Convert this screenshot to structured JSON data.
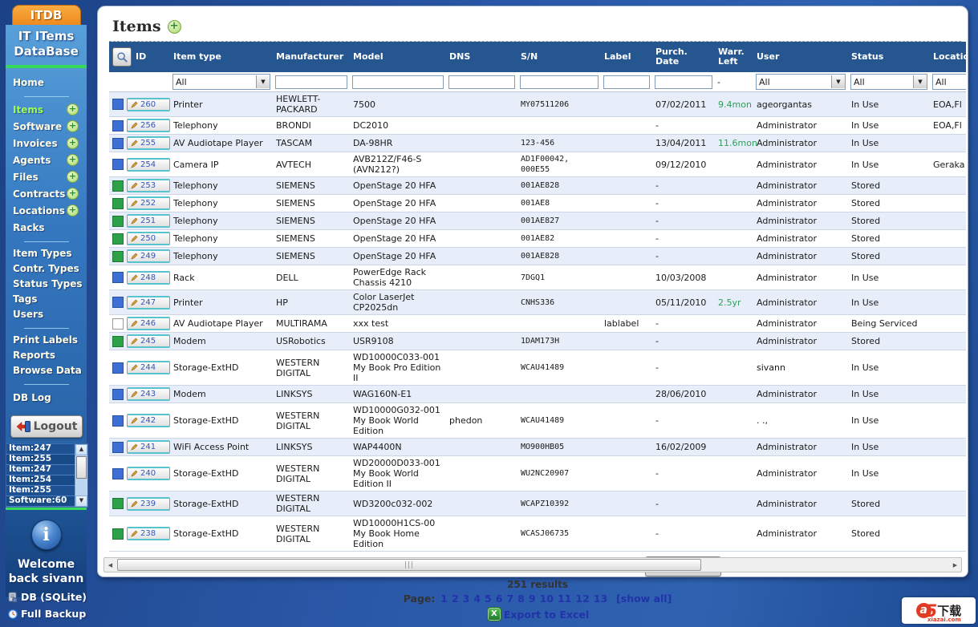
{
  "app": {
    "logo": "ITDB",
    "title_line1": "IT ITems",
    "title_line2": "DataBase"
  },
  "sidebar": {
    "home": "Home",
    "nav_plus": [
      {
        "label": "Items",
        "active": true
      },
      {
        "label": "Software",
        "active": false
      },
      {
        "label": "Invoices",
        "active": false
      },
      {
        "label": "Agents",
        "active": false
      },
      {
        "label": "Files",
        "active": false
      },
      {
        "label": "Contracts",
        "active": false
      },
      {
        "label": "Locations",
        "active": false
      }
    ],
    "racks": "Racks",
    "type_links": [
      "Item Types",
      "Contr. Types",
      "Status Types",
      "Tags",
      "Users"
    ],
    "tool_links": [
      "Print Labels",
      "Reports",
      "Browse Data"
    ],
    "db_log": "DB Log",
    "logout": "Logout",
    "recent": [
      "Item:247",
      "Item:255",
      "Item:247",
      "Item:254",
      "Item:255",
      "Software:60"
    ],
    "welcome_line1": "Welcome",
    "welcome_line2": "back sivann",
    "db_link": "DB (SQLite)",
    "backup_link": "Full Backup"
  },
  "main": {
    "title": "Items",
    "search_button": "Search",
    "results": "251 results",
    "page_label": "Page:",
    "pages": [
      "1",
      "2",
      "3",
      "4",
      "5",
      "6",
      "7",
      "8",
      "9",
      "10",
      "11",
      "12",
      "13"
    ],
    "show_all": "[show all]",
    "export": "Export to Excel",
    "filters": {
      "item_type": "All",
      "warr_left": "-",
      "user": "All",
      "status": "All",
      "location": "All"
    }
  },
  "table": {
    "columns": [
      "ID",
      "Item type",
      "Manufacturer",
      "Model",
      "DNS",
      "S/N",
      "Label",
      "Purch. Date",
      "Warr. Left",
      "User",
      "Status",
      "Location"
    ],
    "rows": [
      {
        "id": "260",
        "status_color": "blue",
        "item_type": "Printer",
        "manufacturer": "HEWLETT-PACKARD",
        "model": "7500",
        "dns": "",
        "sn": "MY07511206",
        "label": "",
        "purch_date": "07/02/2011",
        "warr_left": "9.4mon",
        "user": "ageorgantas",
        "status": "In Use",
        "location": "EOA,Fl"
      },
      {
        "id": "256",
        "status_color": "blue",
        "item_type": "Telephony",
        "manufacturer": "BRONDI",
        "model": "DC2010",
        "dns": "",
        "sn": "",
        "label": "",
        "purch_date": "-",
        "warr_left": "",
        "user": "Administrator",
        "status": "In Use",
        "location": "EOA,Fl"
      },
      {
        "id": "255",
        "status_color": "blue",
        "item_type": "AV Audiotape Player",
        "manufacturer": "TASCAM",
        "model": "DA-98HR",
        "dns": "",
        "sn": "123-456",
        "label": "",
        "purch_date": "13/04/2011",
        "warr_left": "11.6mon",
        "user": "Administrator",
        "status": "In Use",
        "location": ""
      },
      {
        "id": "254",
        "status_color": "blue",
        "item_type": "Camera IP",
        "manufacturer": "AVTECH",
        "model": "AVB212Z/F46-S (AVN212?)",
        "dns": "",
        "sn": "AD1F00042, 000E55",
        "label": "",
        "purch_date": "09/12/2010",
        "warr_left": "",
        "user": "Administrator",
        "status": "In Use",
        "location": "Geraka"
      },
      {
        "id": "253",
        "status_color": "green",
        "item_type": "Telephony",
        "manufacturer": "SIEMENS",
        "model": "OpenStage 20 HFA",
        "dns": "",
        "sn": "001AE828",
        "label": "",
        "purch_date": "-",
        "warr_left": "",
        "user": "Administrator",
        "status": "Stored",
        "location": ""
      },
      {
        "id": "252",
        "status_color": "green",
        "item_type": "Telephony",
        "manufacturer": "SIEMENS",
        "model": "OpenStage 20 HFA",
        "dns": "",
        "sn": "001AE8",
        "label": "",
        "purch_date": "-",
        "warr_left": "",
        "user": "Administrator",
        "status": "Stored",
        "location": ""
      },
      {
        "id": "251",
        "status_color": "green",
        "item_type": "Telephony",
        "manufacturer": "SIEMENS",
        "model": "OpenStage 20 HFA",
        "dns": "",
        "sn": "001AE827",
        "label": "",
        "purch_date": "-",
        "warr_left": "",
        "user": "Administrator",
        "status": "Stored",
        "location": ""
      },
      {
        "id": "250",
        "status_color": "green",
        "item_type": "Telephony",
        "manufacturer": "SIEMENS",
        "model": "OpenStage 20 HFA",
        "dns": "",
        "sn": "001AE82",
        "label": "",
        "purch_date": "-",
        "warr_left": "",
        "user": "Administrator",
        "status": "Stored",
        "location": ""
      },
      {
        "id": "249",
        "status_color": "green",
        "item_type": "Telephony",
        "manufacturer": "SIEMENS",
        "model": "OpenStage 20 HFA",
        "dns": "",
        "sn": "001AE828",
        "label": "",
        "purch_date": "-",
        "warr_left": "",
        "user": "Administrator",
        "status": "Stored",
        "location": ""
      },
      {
        "id": "248",
        "status_color": "blue",
        "item_type": "Rack",
        "manufacturer": "DELL",
        "model": "PowerEdge Rack Chassis 4210",
        "dns": "",
        "sn": "7DGQ1",
        "label": "",
        "purch_date": "10/03/2008",
        "warr_left": "",
        "user": "Administrator",
        "status": "In Use",
        "location": ""
      },
      {
        "id": "247",
        "status_color": "blue",
        "item_type": "Printer",
        "manufacturer": "HP",
        "model": "Color LaserJet CP2025dn",
        "dns": "",
        "sn": "CNHS336",
        "label": "",
        "purch_date": "05/11/2010",
        "warr_left": "2.5yr",
        "user": "Administrator",
        "status": "In Use",
        "location": ""
      },
      {
        "id": "246",
        "status_color": "white",
        "item_type": "AV Audiotape Player",
        "manufacturer": "MULTIRAMA",
        "model": "xxx test",
        "dns": "",
        "sn": "",
        "label": "lablabel",
        "purch_date": "-",
        "warr_left": "",
        "user": "Administrator",
        "status": "Being Serviced",
        "location": ""
      },
      {
        "id": "245",
        "status_color": "green",
        "item_type": "Modem",
        "manufacturer": "USRobotics",
        "model": "USR9108",
        "dns": "",
        "sn": "1DAM173H",
        "label": "",
        "purch_date": "-",
        "warr_left": "",
        "user": "Administrator",
        "status": "Stored",
        "location": ""
      },
      {
        "id": "244",
        "status_color": "blue",
        "item_type": "Storage-ExtHD",
        "manufacturer": "WESTERN DIGITAL",
        "model": "WD10000C033-001 My Book Pro Edition II",
        "dns": "",
        "sn": "WCAU41489",
        "label": "",
        "purch_date": "-",
        "warr_left": "",
        "user": "sivann",
        "status": "In Use",
        "location": ""
      },
      {
        "id": "243",
        "status_color": "blue",
        "item_type": "Modem",
        "manufacturer": "LINKSYS",
        "model": "WAG160N-E1",
        "dns": "",
        "sn": "",
        "label": "",
        "purch_date": "28/06/2010",
        "warr_left": "",
        "user": "Administrator",
        "status": "In Use",
        "location": ""
      },
      {
        "id": "242",
        "status_color": "blue",
        "item_type": "Storage-ExtHD",
        "manufacturer": "WESTERN DIGITAL",
        "model": "WD10000G032-001 My Book World Edition",
        "dns": "phedon",
        "sn": "WCAU41489",
        "label": "",
        "purch_date": "-",
        "warr_left": "",
        "user": ". .,",
        "status": "In Use",
        "location": ""
      },
      {
        "id": "241",
        "status_color": "blue",
        "item_type": "WiFi Access Point",
        "manufacturer": "LINKSYS",
        "model": "WAP4400N",
        "dns": "",
        "sn": "MO900HB05",
        "label": "",
        "purch_date": "16/02/2009",
        "warr_left": "",
        "user": "Administrator",
        "status": "In Use",
        "location": ""
      },
      {
        "id": "240",
        "status_color": "blue",
        "item_type": "Storage-ExtHD",
        "manufacturer": "WESTERN DIGITAL",
        "model": "WD20000D033-001 My Book World Edition II",
        "dns": "",
        "sn": "WU2NC20907",
        "label": "",
        "purch_date": "-",
        "warr_left": "",
        "user": "Administrator",
        "status": "In Use",
        "location": ""
      },
      {
        "id": "239",
        "status_color": "green",
        "item_type": "Storage-ExtHD",
        "manufacturer": "WESTERN DIGITAL",
        "model": "WD3200c032-002",
        "dns": "",
        "sn": "WCAPZ10392",
        "label": "",
        "purch_date": "-",
        "warr_left": "",
        "user": "Administrator",
        "status": "Stored",
        "location": ""
      },
      {
        "id": "238",
        "status_color": "green",
        "item_type": "Storage-ExtHD",
        "manufacturer": "WESTERN DIGITAL",
        "model": "WD10000H1CS-00 My Book Home Edition",
        "dns": "",
        "sn": "WCASJ06735",
        "label": "",
        "purch_date": "-",
        "warr_left": "",
        "user": "Administrator",
        "status": "Stored",
        "location": ""
      }
    ]
  },
  "colors": {
    "status_blue": "#3e6fd4",
    "status_green": "#2da04a",
    "warranty_green": "#2e9e5b",
    "link_blue": "#2233aa"
  },
  "watermark": {
    "a": "a",
    "five": "5",
    "cn": "下载",
    "site": "xiazai.com"
  }
}
